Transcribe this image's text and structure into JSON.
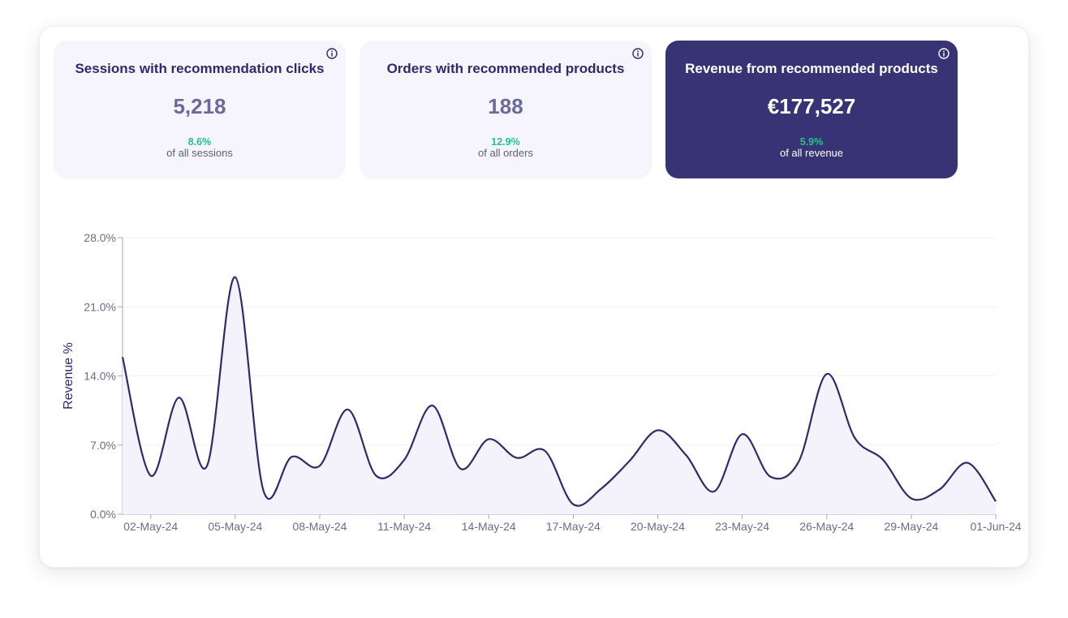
{
  "cards": [
    {
      "title": "Sessions with recommendation clicks",
      "value": "5,218",
      "percent": "8.6%",
      "subtitle": "of all sessions",
      "active": false
    },
    {
      "title": "Orders with recommended products",
      "value": "188",
      "percent": "12.9%",
      "subtitle": "of all orders",
      "active": false
    },
    {
      "title": "Revenue from recommended products",
      "value": "€177,527",
      "percent": "5.9%",
      "subtitle": "of all revenue",
      "active": true
    }
  ],
  "icons": {
    "info": "info-icon"
  },
  "colors": {
    "accent": "#383374",
    "line": "#2f2a6a",
    "area": "#f4f3fc",
    "positive": "#22c48a",
    "card_bg": "#f6f5fd"
  },
  "chart_data": {
    "type": "area",
    "ylabel": "Revenue %",
    "xlabel": "",
    "ylim": [
      0,
      28
    ],
    "yticks": [
      "0.0%",
      "7.0%",
      "14.0%",
      "21.0%",
      "28.0%"
    ],
    "ytick_values": [
      0,
      7,
      14,
      21,
      28
    ],
    "xticks": [
      "02-May-24",
      "05-May-24",
      "08-May-24",
      "11-May-24",
      "14-May-24",
      "17-May-24",
      "20-May-24",
      "23-May-24",
      "26-May-24",
      "29-May-24",
      "01-Jun-24"
    ],
    "xtick_days": [
      2,
      5,
      8,
      11,
      14,
      17,
      20,
      23,
      26,
      29,
      32
    ],
    "x_start_day": 1,
    "x_end_day": 32,
    "grid": true,
    "series": [
      {
        "values": [
          [
            1,
            15.9
          ],
          [
            2,
            3.9
          ],
          [
            3,
            11.8
          ],
          [
            4,
            4.9
          ],
          [
            5,
            24.0
          ],
          [
            6,
            2.4
          ],
          [
            7,
            5.8
          ],
          [
            8,
            4.9
          ],
          [
            9,
            10.6
          ],
          [
            10,
            3.9
          ],
          [
            11,
            5.5
          ],
          [
            12,
            11.0
          ],
          [
            13,
            4.6
          ],
          [
            14,
            7.6
          ],
          [
            15,
            5.7
          ],
          [
            16,
            6.4
          ],
          [
            17,
            1.0
          ],
          [
            18,
            2.6
          ],
          [
            19,
            5.4
          ],
          [
            20,
            8.5
          ],
          [
            21,
            6.0
          ],
          [
            22,
            2.3
          ],
          [
            23,
            8.1
          ],
          [
            24,
            3.8
          ],
          [
            25,
            5.3
          ],
          [
            26,
            14.2
          ],
          [
            27,
            7.7
          ],
          [
            28,
            5.5
          ],
          [
            29,
            1.6
          ],
          [
            30,
            2.5
          ],
          [
            31,
            5.2
          ],
          [
            32,
            1.3
          ]
        ]
      }
    ]
  }
}
